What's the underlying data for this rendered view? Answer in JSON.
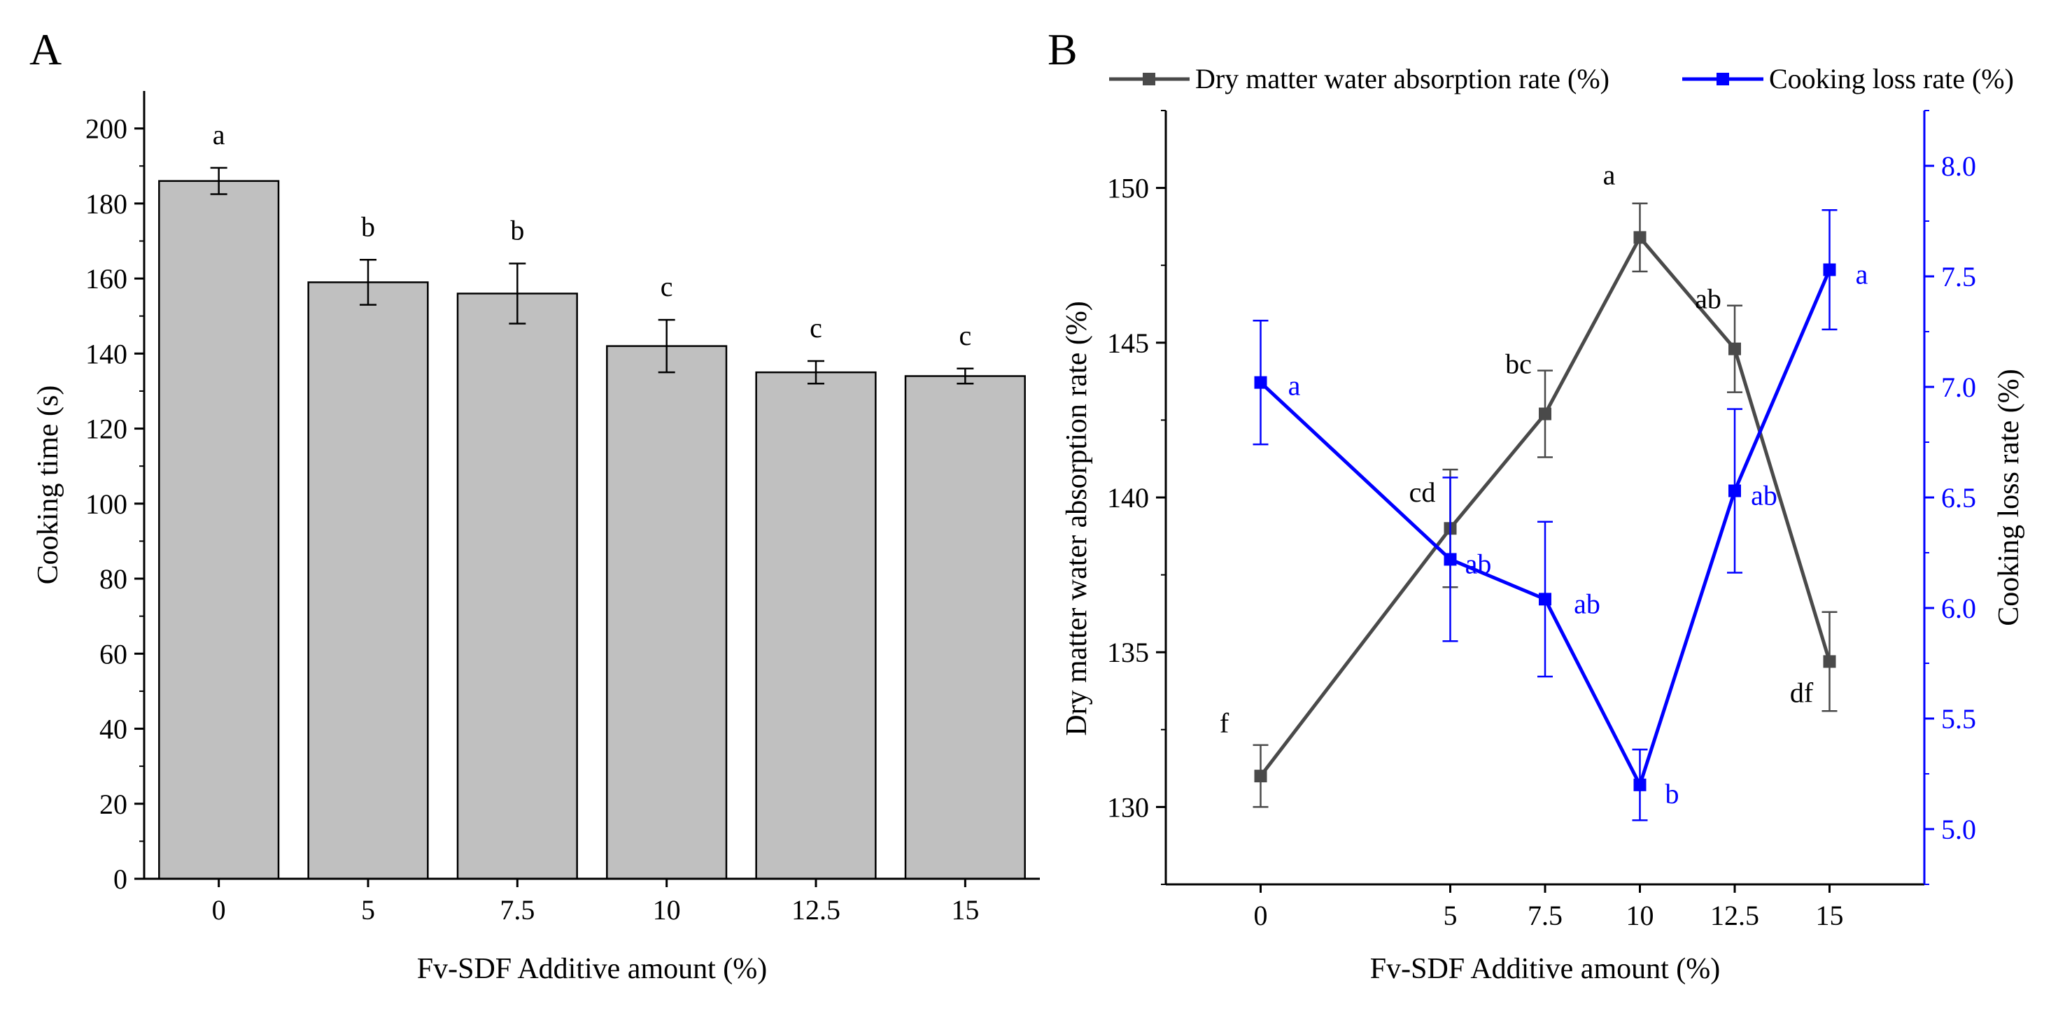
{
  "chart_data": [
    {
      "panel": "A",
      "type": "bar",
      "categories": [
        "0",
        "5",
        "7.5",
        "10",
        "12.5",
        "15"
      ],
      "values": [
        186,
        159,
        156,
        142,
        135,
        134
      ],
      "errors": [
        3.5,
        6,
        8,
        7,
        3,
        2
      ],
      "significance": [
        "a",
        "b",
        "b",
        "c",
        "c",
        "c"
      ],
      "xlabel": "Fv-SDF Additive amount (%)",
      "ylabel": "Cooking time (s)",
      "ylim": [
        0,
        210
      ],
      "yticks": [
        0,
        20,
        40,
        60,
        80,
        100,
        120,
        140,
        160,
        180,
        200
      ],
      "bar_color": "#c0c0c0",
      "grid": false
    },
    {
      "panel": "B",
      "type": "line",
      "x": [
        0,
        5,
        7.5,
        10,
        12.5,
        15
      ],
      "xtick_labels": [
        "0",
        "5",
        "7.5",
        "10",
        "12.5",
        "15"
      ],
      "xlim": [
        -2.5,
        17.5
      ],
      "xlabel": "Fv-SDF Additive amount (%)",
      "ylabel_left": "Dry matter water absorption rate (%)",
      "ylabel_right": "Cooking loss rate (%)",
      "ylim_left": [
        127.5,
        152.5
      ],
      "yticks_left": [
        130,
        135,
        140,
        145,
        150
      ],
      "ylim_right": [
        4.75,
        8.25
      ],
      "yticks_right": [
        "5.0",
        "5.5",
        "6.0",
        "6.5",
        "7.0",
        "7.5",
        "8.0"
      ],
      "legend_position": "top",
      "grid": false,
      "series": [
        {
          "name": "Dry matter water absorption rate (%)",
          "axis": "left",
          "color": "#4a4a4a",
          "values": [
            131.0,
            139.0,
            142.7,
            148.4,
            144.8,
            134.7
          ],
          "errors": [
            1.0,
            1.9,
            1.4,
            1.1,
            1.4,
            1.6
          ],
          "significance": [
            "f",
            "cd",
            "bc",
            "a",
            "ab",
            "df"
          ]
        },
        {
          "name": "Cooking loss rate (%)",
          "axis": "right",
          "color": "#0000ff",
          "values": [
            7.02,
            6.22,
            6.04,
            5.2,
            6.53,
            7.53
          ],
          "errors": [
            0.28,
            0.37,
            0.35,
            0.16,
            0.37,
            0.27
          ],
          "significance": [
            "a",
            "ab",
            "ab",
            "b",
            "ab",
            "a"
          ]
        }
      ]
    }
  ]
}
